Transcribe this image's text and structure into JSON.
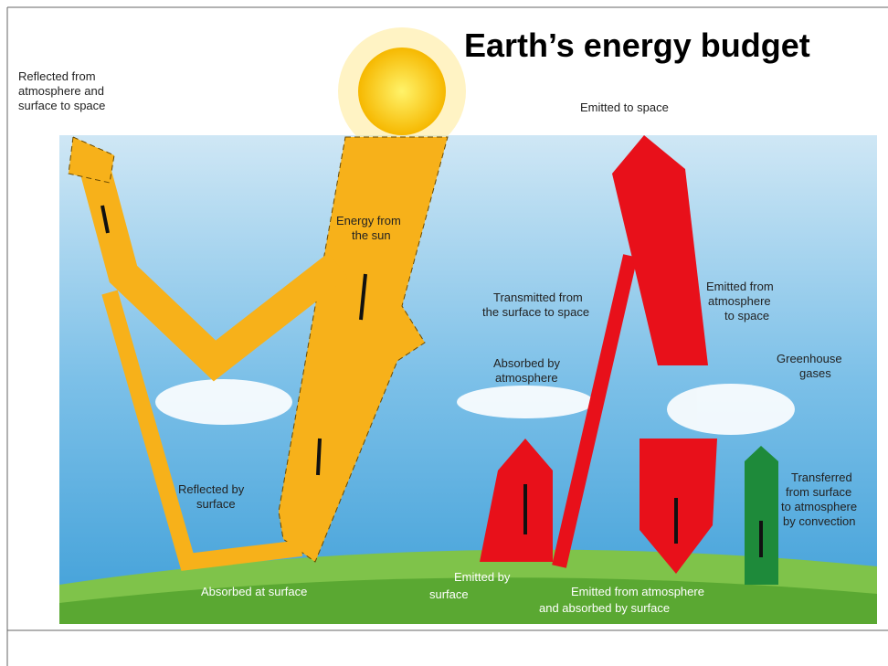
{
  "title": "Earth’s energy budget",
  "labels": {
    "reflected_to_space": [
      "Reflected from",
      "atmosphere and",
      "surface to space"
    ],
    "emitted_to_space": [
      "Emitted to space"
    ],
    "energy_from_sun": [
      "Energy from",
      "the sun"
    ],
    "transmitted": [
      "Transmitted from",
      "the surface to space"
    ],
    "emitted_from_atmosphere": [
      "Emitted from",
      "atmosphere",
      "to space"
    ],
    "absorbed_by_atmosphere": [
      "Absorbed by",
      "atmosphere"
    ],
    "greenhouse": [
      "Greenhouse",
      "gases"
    ],
    "reflected_by_surface": [
      "Reflected by",
      "surface"
    ],
    "convection": [
      "Transferred",
      "from surface",
      "to atmosphere",
      "by convection"
    ],
    "absorbed_at_surface": [
      "Absorbed at surface"
    ],
    "emitted_by_surface": [
      "Emitted by",
      "surface"
    ],
    "emitted_absorbed": [
      "Emitted from atmosphere",
      "and absorbed by surface"
    ]
  }
}
